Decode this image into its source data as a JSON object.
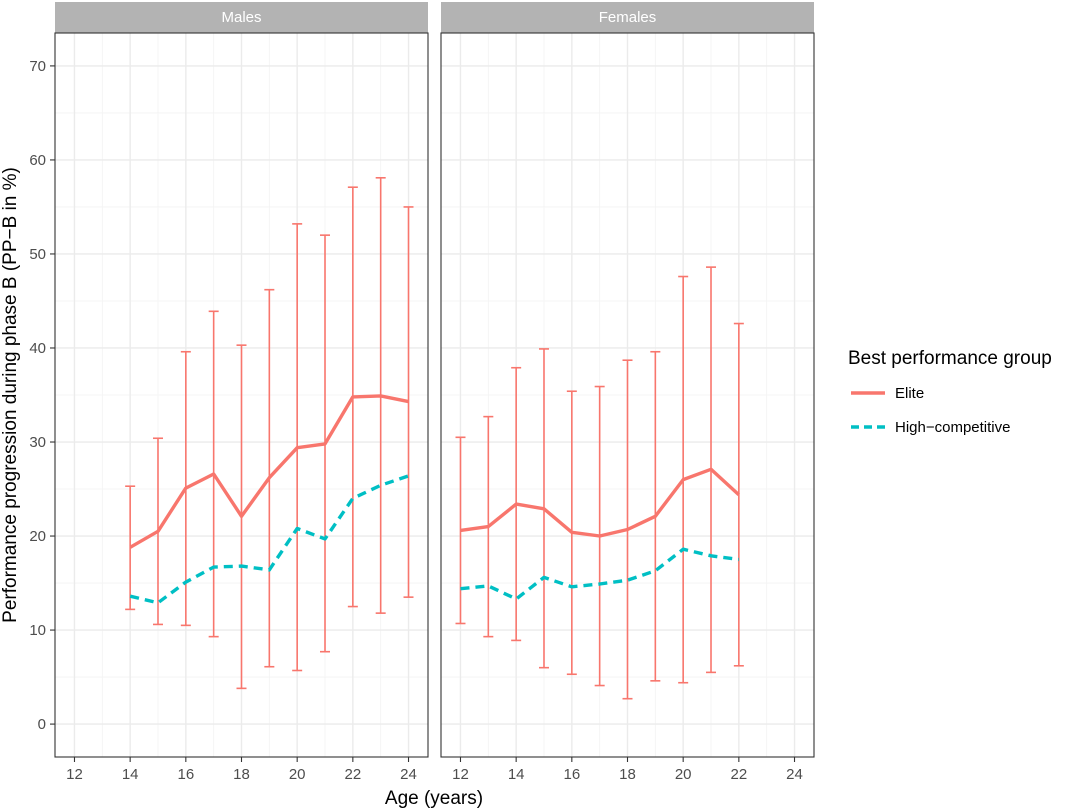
{
  "chart_data": {
    "type": "line",
    "xlabel": "Age (years)",
    "ylabel": "Performance progression during phase B (PP−B in %)",
    "xlim": [
      11.3,
      24.7
    ],
    "ylim": [
      -3.5,
      73.5
    ],
    "xticks": [
      12,
      14,
      16,
      18,
      20,
      22,
      24
    ],
    "yticks": [
      0,
      10,
      20,
      30,
      40,
      50,
      60,
      70
    ],
    "grid": true,
    "legend": {
      "title": "Best performance group",
      "position": "right",
      "entries": [
        "Elite",
        "High−competitive"
      ]
    },
    "colors": {
      "Elite": "#F8766D",
      "High-competitive": "#00BFC4",
      "strip": "#b3b3b3",
      "grid": "#ebebeb"
    },
    "panels": [
      {
        "label": "Males",
        "series": [
          {
            "name": "Elite",
            "x": [
              14,
              15,
              16,
              17,
              18,
              19,
              20,
              21,
              22,
              23,
              24
            ],
            "values": [
              18.8,
              20.5,
              25.1,
              26.6,
              22.1,
              26.2,
              29.4,
              29.8,
              34.8,
              34.9,
              34.3
            ],
            "error_lower": [
              12.2,
              10.6,
              10.5,
              9.3,
              3.8,
              6.1,
              5.7,
              7.7,
              12.5,
              11.8,
              13.5
            ],
            "error_upper": [
              25.3,
              30.4,
              39.6,
              43.9,
              40.3,
              46.2,
              53.2,
              52.0,
              57.1,
              58.1,
              55.0
            ]
          },
          {
            "name": "High−competitive",
            "x": [
              14,
              15,
              16,
              17,
              18,
              19,
              20,
              21,
              22,
              23,
              24
            ],
            "values": [
              13.6,
              12.9,
              15.1,
              16.7,
              16.8,
              16.4,
              20.8,
              19.7,
              24.0,
              25.4,
              26.4
            ]
          }
        ]
      },
      {
        "label": "Females",
        "series": [
          {
            "name": "Elite",
            "x": [
              12,
              13,
              14,
              15,
              16,
              17,
              18,
              19,
              20,
              21,
              22
            ],
            "values": [
              20.6,
              21.0,
              23.4,
              22.9,
              20.4,
              20.0,
              20.7,
              22.1,
              26.0,
              27.1,
              24.4
            ],
            "error_lower": [
              10.7,
              9.3,
              8.9,
              6.0,
              5.3,
              4.1,
              2.7,
              4.6,
              4.4,
              5.5,
              6.2
            ],
            "error_upper": [
              30.5,
              32.7,
              37.9,
              39.9,
              35.4,
              35.9,
              38.7,
              39.6,
              47.6,
              48.6,
              42.6
            ]
          },
          {
            "name": "High−competitive",
            "x": [
              12,
              13,
              14,
              15,
              16,
              17,
              18,
              19,
              20,
              21,
              22
            ],
            "values": [
              14.4,
              14.7,
              13.3,
              15.6,
              14.6,
              14.9,
              15.3,
              16.3,
              18.6,
              17.9,
              17.5
            ]
          }
        ]
      }
    ]
  }
}
